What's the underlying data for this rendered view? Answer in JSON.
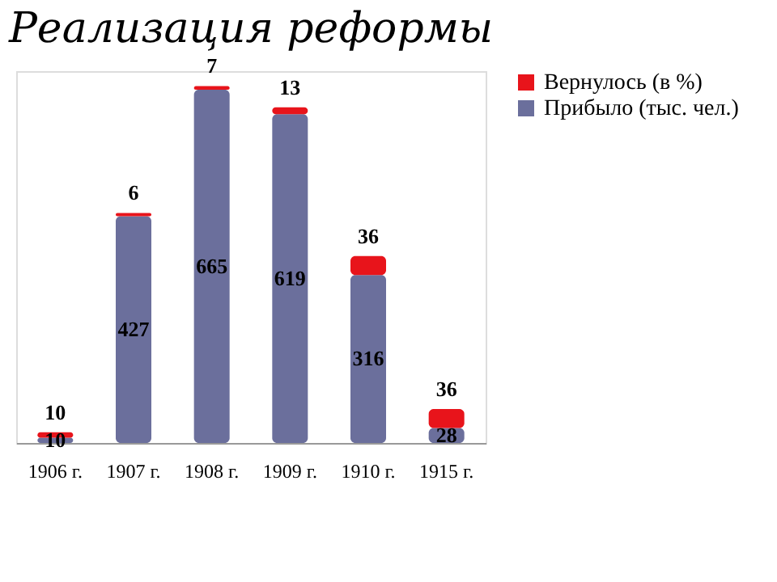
{
  "chart_data": {
    "type": "bar",
    "title": "Реализация реформы",
    "stacked": true,
    "data_labels": true,
    "tick_labels": "x",
    "grid": false,
    "legend": "top right",
    "categories": [
      "1906 г.",
      "1907 г.",
      "1908 г.",
      "1909 г.",
      "1910 г.",
      "1915 г."
    ],
    "series": [
      {
        "name": "Прибыло (тыс. чел.)",
        "color": "#6b6f9c",
        "values": [
          10,
          427,
          665,
          619,
          316,
          28
        ]
      },
      {
        "name": "Вернулось (в %)",
        "color": "#e8141b",
        "values": [
          10,
          6,
          7,
          13,
          36,
          36
        ]
      }
    ]
  }
}
